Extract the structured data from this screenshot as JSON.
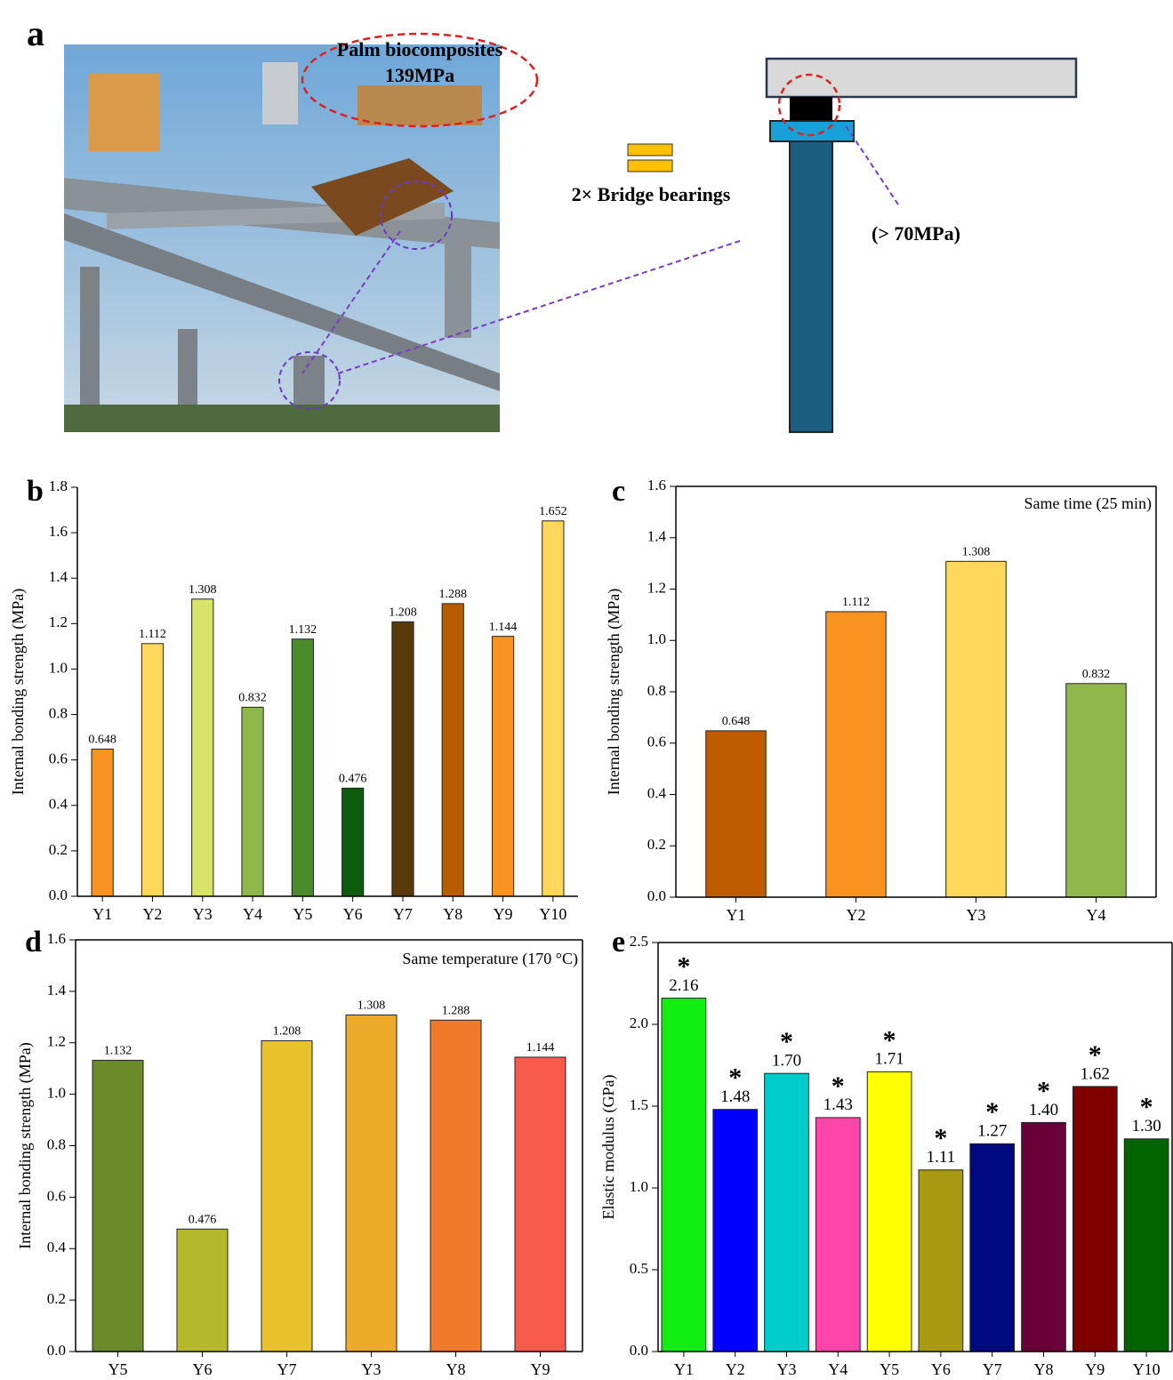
{
  "figure_a": {
    "label": "a",
    "callout_title": "Palm biocomposites",
    "callout_value": "139MPa",
    "legend": "2× Bridge bearings",
    "requirement": "(> 70MPa)"
  },
  "chart_data": [
    {
      "type": "bar",
      "panel_label": "b",
      "y_label": "Internal bonding strength (MPa)",
      "categories": [
        "Y1",
        "Y2",
        "Y3",
        "Y4",
        "Y5",
        "Y6",
        "Y7",
        "Y8",
        "Y9",
        "Y10"
      ],
      "values": [
        0.648,
        1.112,
        1.308,
        0.832,
        1.132,
        0.476,
        1.208,
        1.288,
        1.144,
        1.652
      ],
      "colors": [
        "#f7931e",
        "#ffd75a",
        "#d7e36a",
        "#8cb84c",
        "#4a8c2a",
        "#0b5d0b",
        "#5a3a0a",
        "#b85c00",
        "#f7931e",
        "#ffd75a"
      ],
      "ylim": [
        0,
        1.8
      ],
      "yticks": [
        {
          "value": 0,
          "label": "0.0"
        },
        0.2,
        0.4,
        0.6,
        0.8,
        {
          "value": 1,
          "label": "1.0"
        },
        1.2,
        1.4,
        1.6,
        1.8
      ]
    },
    {
      "type": "bar",
      "panel_label": "c",
      "y_label": "Internal bonding strength (MPa)",
      "annotation": "Same time (25 min)",
      "categories": [
        "Y1",
        "Y2",
        "Y3",
        "Y4"
      ],
      "values": [
        0.648,
        1.112,
        1.308,
        0.832
      ],
      "colors": [
        "#bf5b00",
        "#f7931e",
        "#ffd75a",
        "#8fb84c"
      ],
      "ylim": [
        0,
        1.6
      ],
      "yticks": [
        {
          "value": 0,
          "label": "0.0"
        },
        0.2,
        0.4,
        0.6,
        0.8,
        {
          "value": 1,
          "label": "1.0"
        },
        1.2,
        1.4,
        1.6
      ]
    },
    {
      "type": "bar",
      "panel_label": "d",
      "y_label": "Internal bonding strength (MPa)",
      "annotation": "Same temperature (170 °C)",
      "categories": [
        "Y5",
        "Y6",
        "Y7",
        "Y3",
        "Y8",
        "Y9"
      ],
      "values": [
        1.132,
        0.476,
        1.208,
        1.308,
        1.288,
        1.144
      ],
      "colors": [
        "#6b8a2a",
        "#b5b82a",
        "#e8c22a",
        "#eeaa2a",
        "#f07a2a",
        "#f55a4a"
      ],
      "ylim": [
        0,
        1.6
      ],
      "yticks": [
        {
          "value": 0,
          "label": "0.0"
        },
        0.2,
        0.4,
        0.6,
        0.8,
        {
          "value": 1,
          "label": "1.0"
        },
        1.2,
        1.4,
        1.6
      ]
    },
    {
      "type": "bar",
      "panel_label": "e",
      "y_label": "Elastic modulus (GPa)",
      "categories": [
        "Y1",
        "Y2",
        "Y3",
        "Y4",
        "Y5",
        "Y6",
        "Y7",
        "Y8",
        "Y9",
        "Y10"
      ],
      "values": [
        2.16,
        1.48,
        1.7,
        1.43,
        1.71,
        1.11,
        1.27,
        1.4,
        1.62,
        1.3
      ],
      "value_labels": [
        "2.16",
        "1.48",
        "1.70",
        "1.43",
        "1.71",
        "1.11",
        "1.27",
        "1.40",
        "1.62",
        "1.30"
      ],
      "significance": [
        "*",
        "*",
        "*",
        "*",
        "*",
        "*",
        "*",
        "*",
        "*",
        "*"
      ],
      "colors": [
        "#11ee11",
        "#0000ff",
        "#00cccc",
        "#ff44aa",
        "#ffff00",
        "#a89a10",
        "#000a80",
        "#6a003a",
        "#800000",
        "#006400"
      ],
      "ylim": [
        0,
        2.5
      ],
      "yticks": [
        {
          "value": 0,
          "label": "0.0"
        },
        0.5,
        {
          "value": 1,
          "label": "1.0"
        },
        1.5,
        {
          "value": 2,
          "label": "2.0"
        },
        2.5
      ]
    }
  ]
}
